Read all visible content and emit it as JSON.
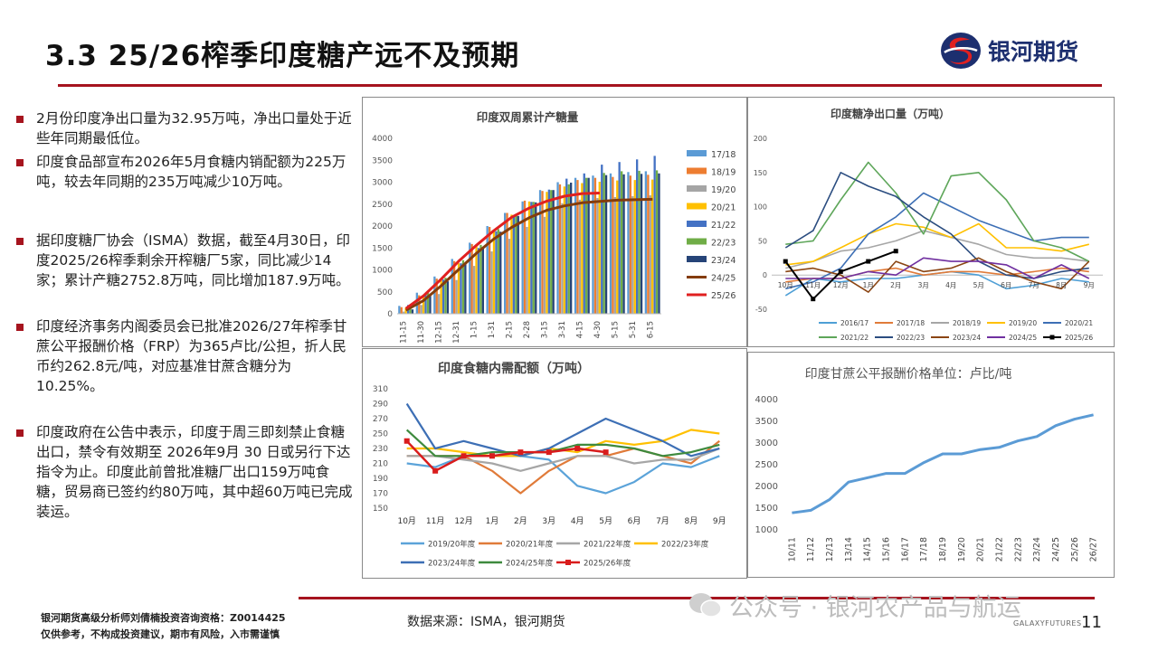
{
  "header": {
    "title": "3.3  25/26榨季印度糖产远不及预期",
    "logo_text": "银河期货"
  },
  "bullets": [
    "2月份印度净出口量为32.95万吨，净出口量处于近些年同期最低位。",
    "印度食品部宣布2026年5月食糖内销配额为225万吨，较去年同期的235万吨减少10万吨。",
    "据印度糖厂协会（ISMA）数据，截至4月30日，印度2025/26榨季剩余开榨糖厂5家，同比减少14家；累计产糖2752.8万吨，同比增加187.9万吨。",
    "印度经济事务内阁委员会已批准2026/27年榨季甘蔗公平报酬价格（FRP）为365卢比/公担，折人民币约262.8元/吨，对应基准甘蔗含糖分为10.25%。",
    "印度政府在公告中表示，印度于周三即刻禁止食糖出口，禁令有效期至 2026年9月 30 日或另行下达指令为止。印度此前曾批准糖厂出口159万吨食糖，贸易商已签约约80万吨，其中超60万吨已完成装运。"
  ],
  "footer": {
    "analyst": "银河期货高级分析师刘倩楠投资咨询资格：Z0014425",
    "disclaimer": "仅供参考，不构成投资建议，期市有风险，入市需谨慎",
    "source": "数据来源：ISMA，银河期货",
    "watermark": "公众号 · 银河农产品与航运",
    "brand_small": "GALAXYFUTURES",
    "page": "11"
  },
  "colors": {
    "accent": "#a6141e",
    "brand": "#1d2f6f"
  },
  "chart_data": [
    {
      "type": "bar",
      "title": "印度双周累计产糖量",
      "categories": [
        "11-15",
        "11-30",
        "12-15",
        "12-31",
        "1-15",
        "1-31",
        "2-15",
        "2-28",
        "3-15",
        "3-31",
        "4-15",
        "4-30",
        "5-15",
        "5-31",
        "6-15"
      ],
      "ylim": [
        0,
        4000
      ],
      "yticks": [
        0,
        500,
        1000,
        1500,
        2000,
        2500,
        3000,
        3500,
        4000
      ],
      "legend": "right",
      "bar_series": [
        {
          "name": "17/18",
          "color": "#5b9bd5",
          "values": [
            180,
            480,
            850,
            1250,
            1620,
            2000,
            2300,
            2560,
            2820,
            3000,
            3100,
            3150,
            3200,
            3230,
            3250
          ]
        },
        {
          "name": "18/19",
          "color": "#ed7d31",
          "values": [
            150,
            420,
            800,
            1200,
            1590,
            1980,
            2300,
            2580,
            2800,
            2950,
            3050,
            3100,
            3120,
            3150,
            3170
          ]
        },
        {
          "name": "19/20",
          "color": "#a5a5a5",
          "values": [
            50,
            200,
            450,
            770,
            1090,
            1420,
            1710,
            1980,
            2210,
            2520,
            2600,
            2640,
            2660,
            2680,
            2700
          ]
        },
        {
          "name": "20/21",
          "color": "#ffc000",
          "values": [
            140,
            420,
            760,
            1150,
            1550,
            1900,
            2260,
            2560,
            2780,
            2900,
            2980,
            3010,
            3040,
            3050,
            3060
          ]
        },
        {
          "name": "21/22",
          "color": "#4472c4",
          "values": [
            200,
            470,
            780,
            1150,
            1500,
            1880,
            2210,
            2550,
            2830,
            3080,
            3200,
            3400,
            3460,
            3520,
            3600
          ]
        },
        {
          "name": "22/23",
          "color": "#70ad47",
          "values": [
            200,
            480,
            820,
            1220,
            1570,
            1930,
            2250,
            2550,
            2820,
            2950,
            3100,
            3210,
            3250,
            3260,
            3270
          ]
        },
        {
          "name": "23/24",
          "color": "#264478",
          "values": [
            100,
            430,
            740,
            1130,
            1490,
            1870,
            2230,
            2540,
            2820,
            2990,
            3100,
            3160,
            3180,
            3190,
            3200
          ]
        }
      ],
      "line_series": [
        {
          "name": "24/25",
          "color": "#843c0c",
          "values": [
            80,
            300,
            640,
            1010,
            1380,
            1710,
            1970,
            2190,
            2360,
            2460,
            2530,
            2560,
            2590,
            2600,
            2610
          ]
        },
        {
          "name": "25/26",
          "color": "#e02020",
          "values": [
            120,
            410,
            790,
            1200,
            1560,
            1900,
            2200,
            2410,
            2570,
            2680,
            2740,
            2752.8,
            null,
            null,
            null
          ]
        }
      ]
    },
    {
      "type": "line",
      "title": "印度糖净出口量（万吨）",
      "categories": [
        "10月",
        "11月",
        "12月",
        "1月",
        "2月",
        "3月",
        "4月",
        "5月",
        "6月",
        "7月",
        "8月",
        "9月"
      ],
      "ylim": [
        -50,
        200
      ],
      "yticks": [
        -50,
        0,
        50,
        100,
        150,
        200
      ],
      "legend": "bottom",
      "series": [
        {
          "name": "2016/17",
          "color": "#4e9fd6",
          "values": [
            -30,
            -5,
            -10,
            -5,
            -5,
            0,
            5,
            0,
            -20,
            -15,
            -5,
            -10
          ]
        },
        {
          "name": "2017/18",
          "color": "#e07b3a",
          "values": [
            -10,
            -5,
            -5,
            5,
            10,
            0,
            5,
            5,
            0,
            5,
            10,
            5
          ]
        },
        {
          "name": "2018/19",
          "color": "#a6a6a6",
          "values": [
            10,
            20,
            35,
            40,
            50,
            65,
            55,
            45,
            30,
            25,
            25,
            20
          ]
        },
        {
          "name": "2019/20",
          "color": "#ffc000",
          "values": [
            15,
            20,
            40,
            60,
            75,
            70,
            55,
            75,
            40,
            40,
            35,
            45
          ]
        },
        {
          "name": "2020/21",
          "color": "#3d6fb5",
          "values": [
            -20,
            -10,
            10,
            60,
            85,
            120,
            100,
            80,
            65,
            50,
            55,
            55
          ]
        },
        {
          "name": "2021/22",
          "color": "#5ea65a",
          "values": [
            45,
            50,
            110,
            165,
            120,
            60,
            145,
            150,
            110,
            50,
            40,
            20
          ]
        },
        {
          "name": "2022/23",
          "color": "#2b4d80",
          "values": [
            40,
            65,
            150,
            130,
            115,
            85,
            60,
            20,
            0,
            -5,
            5,
            10
          ]
        },
        {
          "name": "2023/24",
          "color": "#8b4513",
          "values": [
            5,
            10,
            0,
            -25,
            20,
            5,
            10,
            25,
            5,
            -10,
            -20,
            20
          ]
        },
        {
          "name": "2024/25",
          "color": "#7030a0",
          "values": [
            -5,
            -5,
            -5,
            5,
            0,
            25,
            20,
            20,
            15,
            -5,
            15,
            -5
          ]
        },
        {
          "name": "2025/26",
          "color": "#000000",
          "values": [
            20,
            -35,
            5,
            20,
            35,
            null,
            null,
            null,
            null,
            null,
            null,
            null
          ]
        }
      ]
    },
    {
      "type": "line",
      "title": "印度食糖内需配额（万吨）",
      "categories": [
        "10月",
        "11月",
        "12月",
        "1月",
        "2月",
        "3月",
        "4月",
        "5月",
        "6月",
        "7月",
        "8月",
        "9月"
      ],
      "ylim": [
        150,
        310
      ],
      "yticks": [
        150,
        170,
        190,
        210,
        230,
        250,
        270,
        290,
        310
      ],
      "legend": "bottom",
      "series": [
        {
          "name": "2019/20年度",
          "color": "#5ba3d9",
          "values": [
            210,
            205,
            220,
            220,
            220,
            215,
            180,
            170,
            185,
            210,
            205,
            220
          ]
        },
        {
          "name": "2020/21年度",
          "color": "#e07b3a",
          "values": [
            220,
            220,
            220,
            200,
            170,
            200,
            220,
            220,
            230,
            220,
            210,
            240
          ]
        },
        {
          "name": "2021/22年度",
          "color": "#a6a6a6",
          "values": [
            220,
            220,
            215,
            210,
            200,
            210,
            220,
            220,
            210,
            215,
            215,
            230
          ]
        },
        {
          "name": "2022/23年度",
          "color": "#ffc000",
          "values": [
            230,
            230,
            225,
            220,
            220,
            230,
            225,
            240,
            235,
            240,
            255,
            250
          ]
        },
        {
          "name": "2023/24年度",
          "color": "#3d6fb5",
          "values": [
            290,
            230,
            240,
            230,
            220,
            230,
            250,
            270,
            255,
            240,
            220,
            230
          ]
        },
        {
          "name": "2024/25年度",
          "color": "#3e8a3e",
          "values": [
            255,
            220,
            220,
            225,
            225,
            225,
            235,
            235,
            230,
            220,
            225,
            235
          ]
        },
        {
          "name": "2025/26年度",
          "color": "#d91c1c",
          "values": [
            240,
            200,
            220,
            220,
            225,
            225,
            230,
            225,
            null,
            null,
            null,
            null
          ]
        }
      ]
    },
    {
      "type": "line",
      "title": "印度甘蔗公平报酬价格单位：卢比/吨",
      "categories": [
        "10/11",
        "11/12",
        "12/13",
        "13/14",
        "14/15",
        "15/16",
        "16/17",
        "17/18",
        "18/19",
        "19/20",
        "20/21",
        "21/22",
        "22/23",
        "23/24",
        "24/25",
        "25/26",
        "26/27"
      ],
      "ylim": [
        1000,
        4000
      ],
      "yticks": [
        1000,
        1500,
        2000,
        2500,
        3000,
        3500,
        4000
      ],
      "series": [
        {
          "name": "",
          "color": "#5b9bd5",
          "values": [
            1391,
            1450,
            1700,
            2100,
            2200,
            2300,
            2300,
            2550,
            2750,
            2750,
            2850,
            2900,
            3050,
            3150,
            3400,
            3550,
            3650
          ]
        }
      ]
    }
  ]
}
